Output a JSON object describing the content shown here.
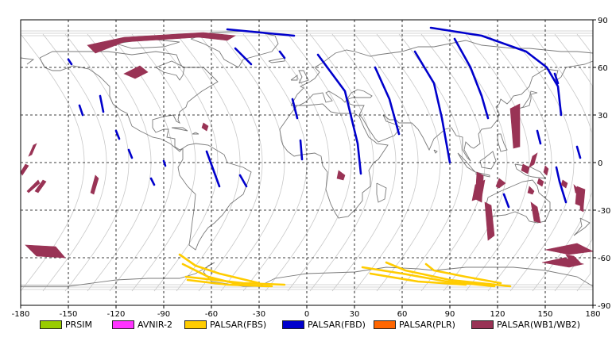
{
  "map": {
    "x_ticks": [
      "-180",
      "-150",
      "-120",
      "-90",
      "-60",
      "-30",
      "0",
      "30",
      "60",
      "90",
      "120",
      "150",
      "180"
    ],
    "y_ticks": [
      "90",
      "60",
      "30",
      "0",
      "-30",
      "-60",
      "-90"
    ],
    "colors": {
      "frame": "#000000",
      "grid": "#000000",
      "coast": "#7a7a7a",
      "orbit": "#c8c8c8"
    }
  },
  "legend": [
    {
      "label": "PRSIM",
      "color": "#99cc00"
    },
    {
      "label": "AVNIR-2",
      "color": "#ff33ff"
    },
    {
      "label": "PALSAR(FBS)",
      "color": "#ffcc00"
    },
    {
      "label": "PALSAR(FBD)",
      "color": "#0000cc"
    },
    {
      "label": "PALSAR(PLR)",
      "color": "#ff6600"
    },
    {
      "label": "PALSAR(WB1/WB2)",
      "color": "#993355"
    }
  ],
  "chart_data": {
    "type": "map",
    "projection": "equirectangular",
    "xlim": [
      -180,
      180
    ],
    "ylim": [
      -90,
      90
    ],
    "grid": true,
    "legend_position": "bottom",
    "series": [
      {
        "name": "PALSAR(FBD)",
        "type": "strips",
        "lines": [
          [
            [
              -50,
              84
            ],
            [
              -8,
              80
            ]
          ],
          [
            [
              -45,
              72
            ],
            [
              -35,
              62
            ]
          ],
          [
            [
              -17,
              70
            ],
            [
              -14,
              66
            ]
          ],
          [
            [
              7,
              68
            ],
            [
              24,
              45
            ],
            [
              32,
              12
            ],
            [
              34,
              -7
            ]
          ],
          [
            [
              43,
              60
            ],
            [
              52,
              40
            ],
            [
              58,
              18
            ]
          ],
          [
            [
              68,
              70
            ],
            [
              80,
              50
            ],
            [
              85,
              28
            ],
            [
              90,
              0
            ]
          ],
          [
            [
              93,
              78
            ],
            [
              103,
              60
            ],
            [
              110,
              42
            ],
            [
              114,
              28
            ]
          ],
          [
            [
              78,
              85
            ],
            [
              110,
              80
            ],
            [
              138,
              70
            ],
            [
              151,
              60
            ],
            [
              158,
              48
            ],
            [
              160,
              30
            ]
          ],
          [
            [
              -63,
              7
            ],
            [
              -55,
              -15
            ]
          ],
          [
            [
              -42,
              -8
            ],
            [
              -38,
              -15
            ]
          ],
          [
            [
              -9,
              40
            ],
            [
              -6,
              28
            ]
          ],
          [
            [
              -4,
              14
            ],
            [
              -3,
              2
            ]
          ],
          [
            [
              -90,
              1
            ],
            [
              -89,
              -2
            ]
          ],
          [
            [
              157,
              -3
            ],
            [
              159,
              -12
            ],
            [
              163,
              -25
            ]
          ],
          [
            [
              124,
              -20
            ],
            [
              127,
              -28
            ]
          ],
          [
            [
              156,
              56
            ],
            [
              158,
              50
            ]
          ],
          [
            [
              -150,
              65
            ],
            [
              -148,
              62
            ]
          ],
          [
            [
              -130,
              42
            ],
            [
              -128,
              32
            ]
          ],
          [
            [
              -143,
              36
            ],
            [
              -141,
              30
            ]
          ],
          [
            [
              -120,
              20
            ],
            [
              -118,
              15
            ]
          ],
          [
            [
              -112,
              8
            ],
            [
              -110,
              3
            ]
          ],
          [
            [
              -98,
              -10
            ],
            [
              -96,
              -14
            ]
          ],
          [
            [
              145,
              20
            ],
            [
              147,
              12
            ]
          ],
          [
            [
              170,
              10
            ],
            [
              172,
              3
            ]
          ]
        ]
      },
      {
        "name": "PALSAR(WB1/WB2)",
        "type": "polygons",
        "polys": [
          [
            [
              -138,
              74
            ],
            [
              -115,
              79
            ],
            [
              -65,
              82
            ],
            [
              -45,
              80
            ],
            [
              -50,
              77
            ],
            [
              -68,
              79
            ],
            [
              -115,
              76
            ],
            [
              -133,
              69
            ]
          ],
          [
            [
              -115,
              56
            ],
            [
              -105,
              61
            ],
            [
              -100,
              57
            ],
            [
              -108,
              53
            ]
          ],
          [
            [
              106,
              -14
            ],
            [
              112,
              -11
            ],
            [
              110,
              -22
            ],
            [
              104,
              -24
            ]
          ],
          [
            [
              142,
              4
            ],
            [
              145,
              6
            ],
            [
              143,
              -1
            ],
            [
              140,
              -3
            ]
          ],
          [
            [
              -177,
              -52
            ],
            [
              -170,
              -59
            ],
            [
              -152,
              -60
            ],
            [
              -158,
              -53
            ]
          ],
          [
            [
              150,
              -55
            ],
            [
              165,
              -58
            ],
            [
              180,
              -56
            ],
            [
              170,
              -51
            ]
          ],
          [
            [
              148,
              -63
            ],
            [
              165,
              -66
            ],
            [
              174,
              -64
            ],
            [
              162,
              -60
            ]
          ],
          [
            [
              163,
              -58
            ],
            [
              168,
              -59
            ],
            [
              172,
              -63
            ],
            [
              166,
              -63
            ]
          ],
          [
            [
              -166,
              -11
            ],
            [
              -164,
              -12
            ],
            [
              -169,
              -19
            ],
            [
              -171,
              -18
            ]
          ],
          [
            [
              -172,
              11
            ],
            [
              -170,
              12
            ],
            [
              -173,
              5
            ],
            [
              -175,
              4
            ]
          ],
          [
            [
              -177,
              -1
            ],
            [
              -175,
              -2
            ],
            [
              -179,
              -8
            ],
            [
              -180,
              -6
            ]
          ],
          [
            [
              112,
              -25
            ],
            [
              116,
              -27
            ],
            [
              118,
              -46
            ],
            [
              114,
              -49
            ]
          ],
          [
            [
              107,
              -6
            ],
            [
              111,
              -8
            ],
            [
              110,
              -25
            ],
            [
              106,
              -23
            ]
          ],
          [
            [
              128,
              34
            ],
            [
              134,
              37
            ],
            [
              134,
              10
            ],
            [
              130,
              9
            ]
          ],
          [
            [
              170,
              -15
            ],
            [
              175,
              -17
            ],
            [
              174,
              -28
            ],
            [
              169,
              -26
            ]
          ],
          [
            [
              -133,
              -8
            ],
            [
              -131,
              -10
            ],
            [
              -134,
              -20
            ],
            [
              -136,
              -19
            ]
          ],
          [
            [
              -169,
              -11
            ],
            [
              -168,
              -13
            ],
            [
              -175,
              -19
            ],
            [
              -176,
              -18
            ]
          ],
          [
            [
              141,
              -25
            ],
            [
              145,
              -28
            ],
            [
              147,
              -38
            ],
            [
              143,
              -37
            ]
          ],
          [
            [
              168,
              -14
            ],
            [
              170,
              -16
            ],
            [
              171,
              -20
            ],
            [
              169,
              -19
            ]
          ],
          [
            [
              172,
              -27
            ],
            [
              174,
              -28
            ],
            [
              174,
              -31
            ],
            [
              172,
              -30
            ]
          ],
          [
            [
              121,
              -10
            ],
            [
              125,
              -13
            ],
            [
              121,
              -16
            ],
            [
              119,
              -15
            ]
          ],
          [
            [
              140,
              -15
            ],
            [
              143,
              -18
            ],
            [
              142,
              -20
            ],
            [
              139,
              -19
            ]
          ],
          [
            [
              20,
              -5
            ],
            [
              24,
              -8
            ],
            [
              23,
              -11
            ],
            [
              19,
              -10
            ]
          ],
          [
            [
              -65,
              25
            ],
            [
              -62,
              23
            ],
            [
              -63,
              20
            ],
            [
              -66,
              22
            ]
          ],
          [
            [
              136,
              -1
            ],
            [
              140,
              -3
            ],
            [
              139,
              -7
            ],
            [
              135,
              -5
            ]
          ],
          [
            [
              150,
              -2
            ],
            [
              152,
              -4
            ],
            [
              151,
              -8
            ],
            [
              149,
              -6
            ]
          ],
          [
            [
              161,
              -11
            ],
            [
              164,
              -13
            ],
            [
              163,
              -16
            ],
            [
              160,
              -14
            ]
          ],
          [
            [
              146,
              -10
            ],
            [
              149,
              -12
            ],
            [
              148,
              -15
            ],
            [
              145,
              -13
            ]
          ]
        ]
      },
      {
        "name": "PALSAR(FBS)",
        "type": "strips",
        "lines": [
          [
            [
              -80,
              -58
            ],
            [
              -70,
              -65
            ],
            [
              -55,
              -70
            ],
            [
              -30,
              -76
            ]
          ],
          [
            [
              -78,
              -64
            ],
            [
              -62,
              -72
            ],
            [
              -42,
              -77
            ],
            [
              -25,
              -78
            ]
          ],
          [
            [
              -76,
              -72
            ],
            [
              -40,
              -76
            ],
            [
              -14,
              -77
            ]
          ],
          [
            [
              -75,
              -74
            ],
            [
              -50,
              -77
            ],
            [
              -22,
              -78
            ]
          ],
          [
            [
              35,
              -66
            ],
            [
              60,
              -70
            ],
            [
              88,
              -75
            ],
            [
              118,
              -78
            ]
          ],
          [
            [
              50,
              -63
            ],
            [
              62,
              -68
            ],
            [
              90,
              -74
            ],
            [
              128,
              -78
            ]
          ],
          [
            [
              75,
              -64
            ],
            [
              80,
              -68
            ],
            [
              100,
              -72
            ],
            [
              122,
              -76
            ]
          ],
          [
            [
              40,
              -70
            ],
            [
              70,
              -75
            ],
            [
              100,
              -77
            ]
          ]
        ]
      }
    ]
  }
}
